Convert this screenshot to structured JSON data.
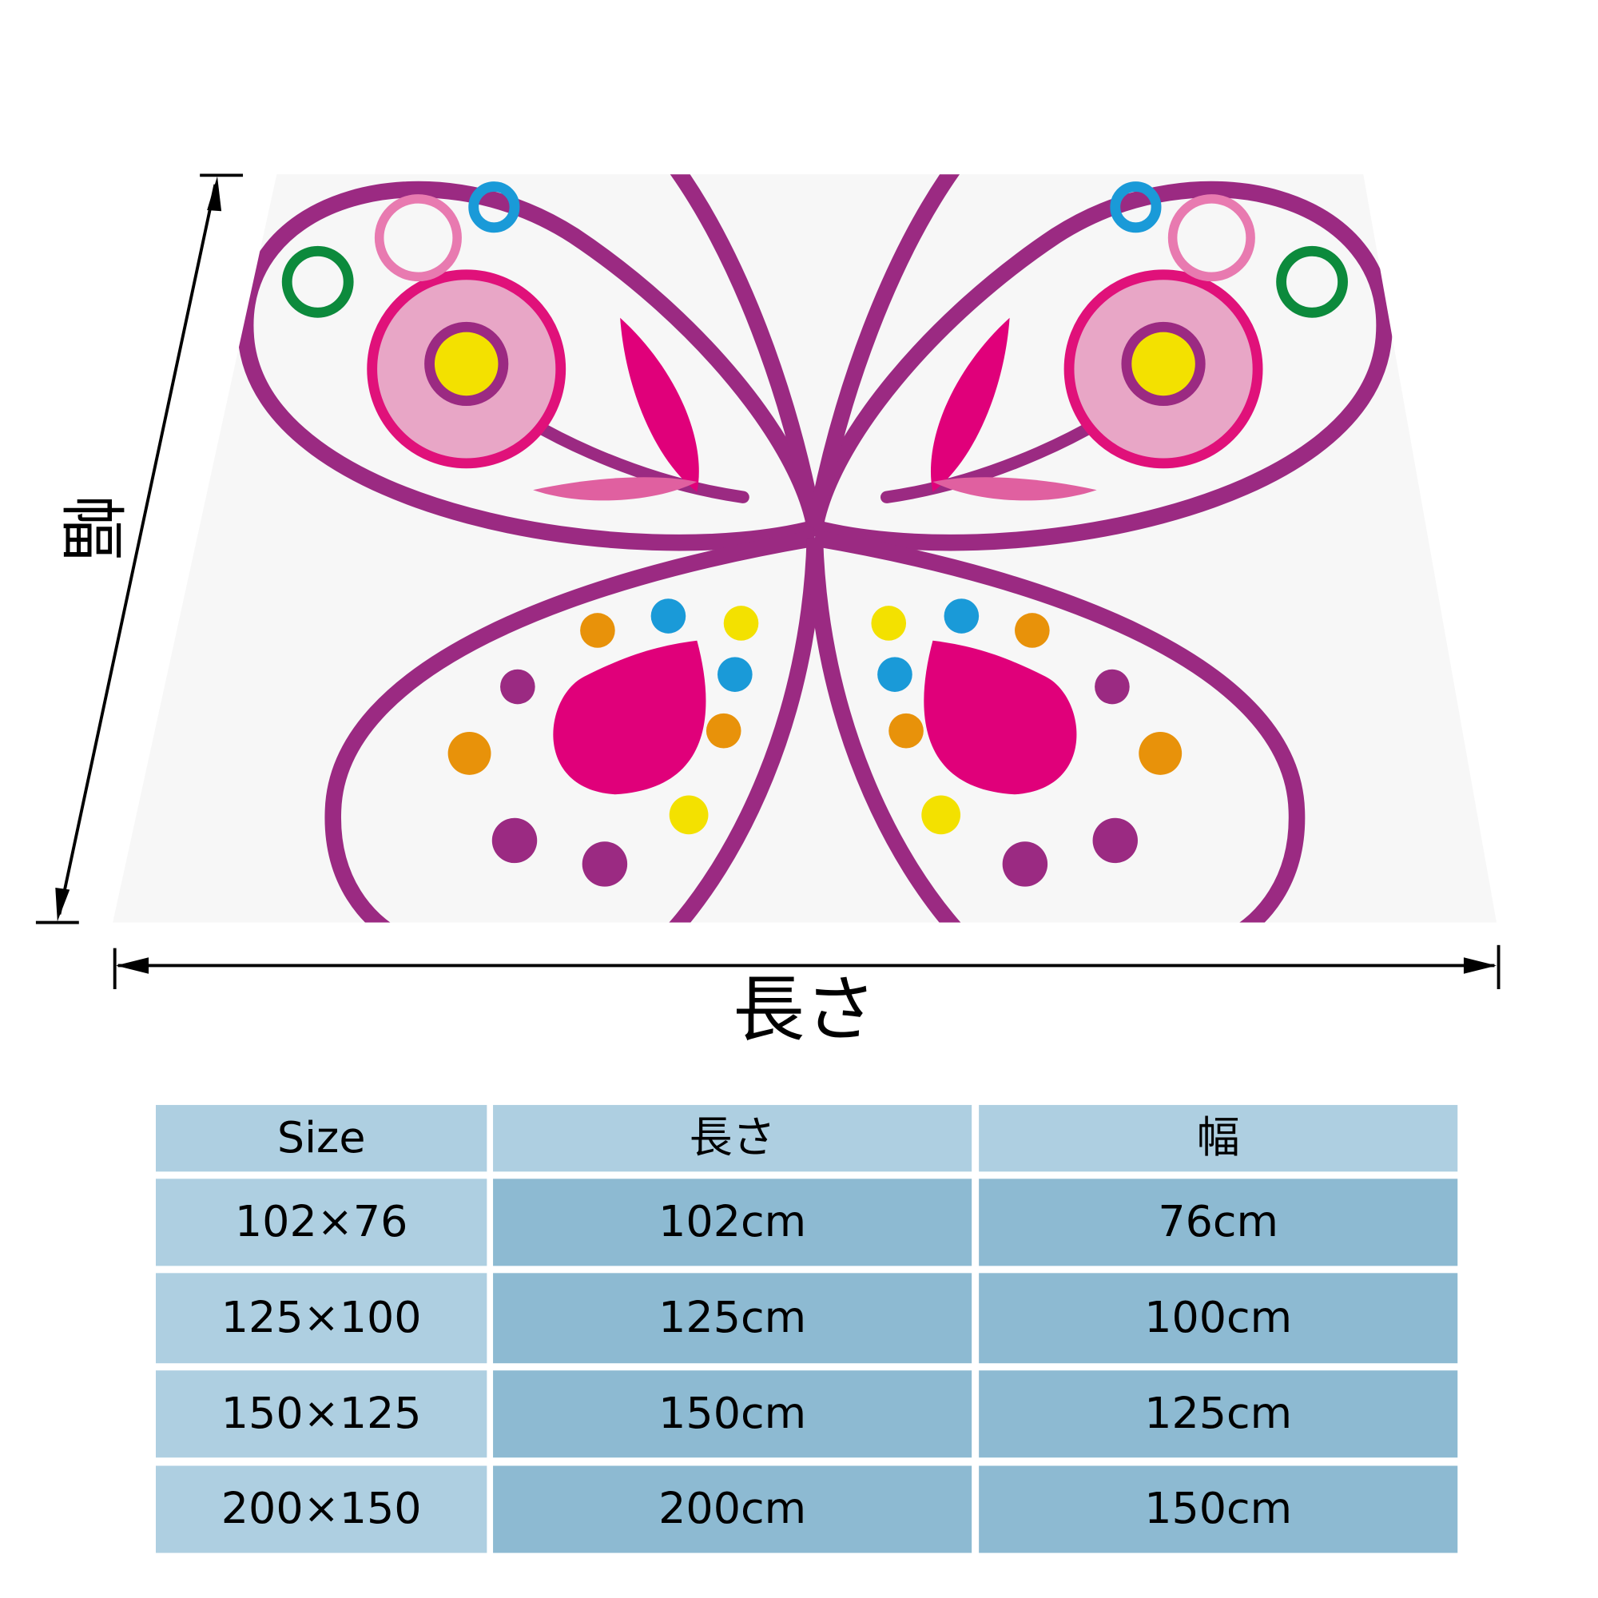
{
  "dimension_labels": {
    "width": "幅",
    "length": "長さ"
  },
  "table": {
    "header": [
      "Size",
      "長さ",
      "幅"
    ],
    "rows": [
      [
        "102×76",
        "102cm",
        "76cm"
      ],
      [
        "125×100",
        "125cm",
        "100cm"
      ],
      [
        "150×125",
        "150cm",
        "125cm"
      ],
      [
        "200×150",
        "200cm",
        "150cm"
      ]
    ]
  }
}
